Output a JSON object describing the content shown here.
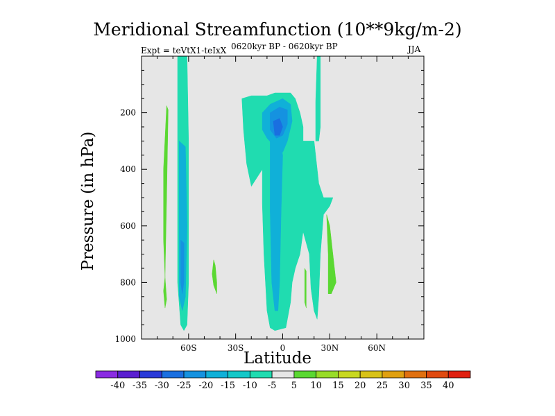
{
  "chart_data": {
    "type": "contour",
    "title": "Meridional Streamfunction (10**9kg/m-2)",
    "left_label": "Expt = teVtX1-teIxX",
    "center_label": "0620kyr BP - 0620kyr BP",
    "right_label": "JJA",
    "xlabel": "Latitude",
    "ylabel": "Pressure (in hPa)",
    "xlim": [
      -90,
      90
    ],
    "ylim": [
      1000,
      0
    ],
    "x_ticks": [
      -60,
      -30,
      0,
      30,
      60
    ],
    "x_tick_labels": [
      "60S",
      "30S",
      "0",
      "30N",
      "60N"
    ],
    "y_ticks": [
      200,
      400,
      600,
      800,
      1000
    ],
    "y_tick_labels": [
      "200",
      "400",
      "600",
      "800",
      "1000"
    ],
    "background_color": "#e6e6e6",
    "levels": [
      -40,
      -35,
      -30,
      -25,
      -20,
      -15,
      -10,
      -5,
      5,
      10,
      15,
      20,
      25,
      30,
      35,
      40
    ],
    "level_labels": [
      "-40",
      "-35",
      "-30",
      "-25",
      "-20",
      "-15",
      "-10",
      "-5",
      "5",
      "10",
      "15",
      "20",
      "25",
      "30",
      "35",
      "40"
    ],
    "colorbar_colors": [
      "#8a2be2",
      "#5a1fd0",
      "#2a3ad8",
      "#1a6fe0",
      "#1592e0",
      "#10b0d8",
      "#14c8c8",
      "#20dcb0",
      "#e6e6e6",
      "#5ad832",
      "#98dc28",
      "#c8d820",
      "#d8c218",
      "#e0a010",
      "#e07010",
      "#e04a10",
      "#e02010"
    ],
    "features": [
      {
        "name": "band-65S",
        "value": -10,
        "color": "#20dcb0",
        "points": [
          [
            -67,
            0
          ],
          [
            -61,
            0
          ],
          [
            -60,
            300
          ],
          [
            -60,
            800
          ],
          [
            -61,
            950
          ],
          [
            -63,
            970
          ],
          [
            -65,
            950
          ],
          [
            -67,
            800
          ],
          [
            -67,
            300
          ]
        ]
      },
      {
        "name": "band-65S-core",
        "value": -15,
        "color": "#10b0d8",
        "points": [
          [
            -66,
            300
          ],
          [
            -62,
            320
          ],
          [
            -61,
            600
          ],
          [
            -62,
            850
          ],
          [
            -64,
            900
          ],
          [
            -66,
            850
          ],
          [
            -66,
            600
          ]
        ]
      },
      {
        "name": "band-65S-inner",
        "value": -20,
        "color": "#1592e0",
        "points": [
          [
            -65,
            650
          ],
          [
            -63,
            660
          ],
          [
            -63,
            800
          ],
          [
            -64,
            840
          ],
          [
            -65,
            800
          ]
        ]
      },
      {
        "name": "green-strip-75S",
        "value": 5,
        "color": "#5ad832",
        "points": [
          [
            -74,
            175
          ],
          [
            -73,
            190
          ],
          [
            -74,
            500
          ],
          [
            -75,
            780
          ],
          [
            -76,
            650
          ],
          [
            -76,
            400
          ]
        ]
      },
      {
        "name": "green-tail-75S",
        "value": 5,
        "color": "#5ad832",
        "points": [
          [
            -75,
            780
          ],
          [
            -74,
            860
          ],
          [
            -75,
            890
          ],
          [
            -76,
            830
          ]
        ]
      },
      {
        "name": "green-blob-45S",
        "value": 5,
        "color": "#5ad832",
        "points": [
          [
            -44,
            720
          ],
          [
            -43,
            740
          ],
          [
            -42,
            800
          ],
          [
            -42,
            840
          ],
          [
            -44,
            810
          ],
          [
            -45,
            770
          ]
        ]
      },
      {
        "name": "tropical-cell",
        "value": -10,
        "color": "#20dcb0",
        "points": [
          [
            -26,
            150
          ],
          [
            -20,
            140
          ],
          [
            -10,
            140
          ],
          [
            -5,
            130
          ],
          [
            5,
            130
          ],
          [
            8,
            150
          ],
          [
            11,
            200
          ],
          [
            13,
            250
          ],
          [
            13,
            300
          ],
          [
            20,
            300
          ],
          [
            23,
            450
          ],
          [
            26,
            500
          ],
          [
            32,
            500
          ],
          [
            30,
            530
          ],
          [
            26,
            560
          ],
          [
            24,
            700
          ],
          [
            23,
            850
          ],
          [
            22,
            930
          ],
          [
            20,
            900
          ],
          [
            18,
            820
          ],
          [
            17,
            700
          ],
          [
            13,
            620
          ],
          [
            11,
            700
          ],
          [
            8,
            750
          ],
          [
            6,
            800
          ],
          [
            5,
            870
          ],
          [
            2,
            960
          ],
          [
            -5,
            970
          ],
          [
            -8,
            960
          ],
          [
            -10,
            900
          ],
          [
            -12,
            700
          ],
          [
            -13,
            520
          ],
          [
            -13,
            400
          ],
          [
            -20,
            460
          ],
          [
            -23,
            380
          ],
          [
            -25,
            260
          ]
        ]
      },
      {
        "name": "tropical-upper-core",
        "value": -15,
        "color": "#10b0d8",
        "points": [
          [
            -13,
            200
          ],
          [
            -8,
            170
          ],
          [
            0,
            150
          ],
          [
            5,
            170
          ],
          [
            6,
            230
          ],
          [
            3,
            300
          ],
          [
            0,
            340
          ],
          [
            -5,
            320
          ],
          [
            -10,
            290
          ],
          [
            -13,
            260
          ]
        ]
      },
      {
        "name": "tropical-column-core",
        "value": -15,
        "color": "#10b0d8",
        "points": [
          [
            -8,
            300
          ],
          [
            -2,
            300
          ],
          [
            0,
            350
          ],
          [
            -1,
            550
          ],
          [
            -2,
            800
          ],
          [
            -3,
            900
          ],
          [
            -5,
            900
          ],
          [
            -7,
            800
          ],
          [
            -8,
            550
          ]
        ]
      },
      {
        "name": "tropical-upper-inner",
        "value": -20,
        "color": "#1592e0",
        "points": [
          [
            -8,
            200
          ],
          [
            -2,
            180
          ],
          [
            3,
            190
          ],
          [
            3,
            240
          ],
          [
            0,
            280
          ],
          [
            -4,
            290
          ],
          [
            -8,
            260
          ]
        ]
      },
      {
        "name": "tropical-upper-max",
        "value": -25,
        "color": "#1a6fe0",
        "points": [
          [
            -6,
            230
          ],
          [
            -2,
            220
          ],
          [
            0,
            250
          ],
          [
            -2,
            280
          ],
          [
            -5,
            280
          ]
        ]
      },
      {
        "name": "band-22N",
        "value": -10,
        "color": "#20dcb0",
        "points": [
          [
            22,
            0
          ],
          [
            24,
            0
          ],
          [
            24,
            160
          ],
          [
            24,
            250
          ],
          [
            23,
            300
          ],
          [
            21,
            300
          ],
          [
            21,
            160
          ]
        ]
      },
      {
        "name": "green-strip-14N",
        "value": 5,
        "color": "#5ad832",
        "points": [
          [
            14,
            750
          ],
          [
            15,
            760
          ],
          [
            15,
            890
          ],
          [
            14,
            870
          ]
        ]
      },
      {
        "name": "green-blob-30N",
        "value": 5,
        "color": "#5ad832",
        "points": [
          [
            28,
            560
          ],
          [
            30,
            600
          ],
          [
            34,
            800
          ],
          [
            31,
            840
          ],
          [
            29,
            840
          ],
          [
            29,
            700
          ]
        ]
      }
    ]
  }
}
